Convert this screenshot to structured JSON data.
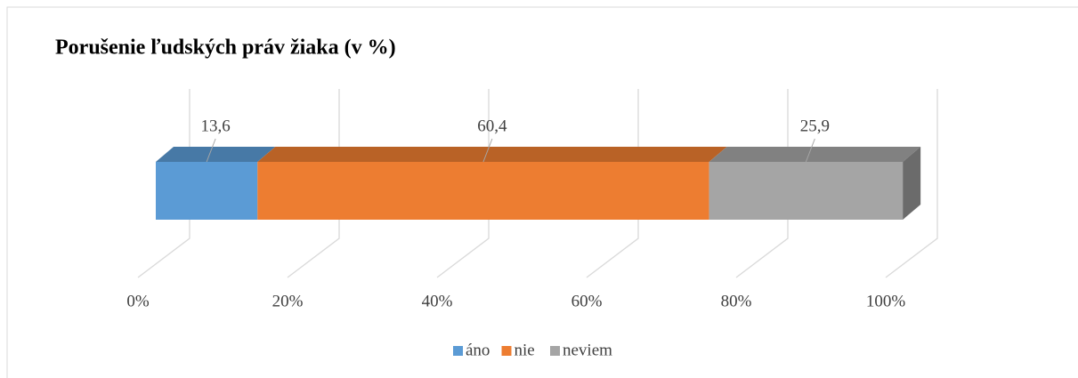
{
  "chart_data": {
    "type": "bar",
    "orientation": "horizontal",
    "stacked": true,
    "three_d": true,
    "title": "Porušenie ľudských práv žiaka (v %)",
    "series": [
      {
        "name": "áno",
        "color": "#5b9bd5",
        "values": [
          13.6
        ],
        "value_labels": [
          "13,6"
        ]
      },
      {
        "name": "nie",
        "color": "#ed7d31",
        "values": [
          60.4
        ],
        "value_labels": [
          "60,4"
        ]
      },
      {
        "name": "neviem",
        "color": "#a5a5a5",
        "values": [
          25.9
        ],
        "value_labels": [
          "25,9"
        ]
      }
    ],
    "xlim": [
      0,
      100
    ],
    "xticks": [
      {
        "value": 0,
        "label": "0%"
      },
      {
        "value": 20,
        "label": "20%"
      },
      {
        "value": 40,
        "label": "40%"
      },
      {
        "value": 60,
        "label": "60%"
      },
      {
        "value": 80,
        "label": "80%"
      },
      {
        "value": 100,
        "label": "100%"
      }
    ],
    "grid": true,
    "legend": "bottom"
  }
}
